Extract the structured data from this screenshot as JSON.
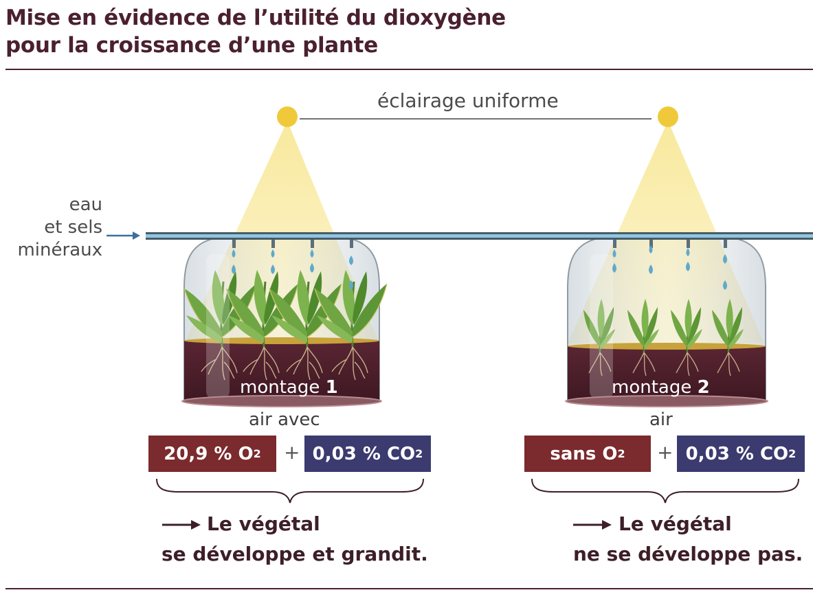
{
  "title": {
    "line1": "Mise en évidence de l’utilité du dioxygène",
    "line2": "pour la croissance d’une plante"
  },
  "lighting_label": "éclairage uniforme",
  "water_label": {
    "line1": "eau",
    "line2": "et sels",
    "line3": "minéraux"
  },
  "setups": [
    {
      "label": "montage",
      "number": "1",
      "air_label": "air avec",
      "o2_text": "20,9 % O",
      "o2_sub": "2",
      "plus": "+",
      "co2_text": "0,03 % CO",
      "co2_sub": "2",
      "result_line1": "Le végétal",
      "result_line2": "se développe et grandit."
    },
    {
      "label": "montage",
      "number": "2",
      "air_label": "air",
      "o2_text": "sans O",
      "o2_sub": "2",
      "plus": "+",
      "co2_text": "0,03 % CO",
      "co2_sub": "2",
      "result_line1": "Le végétal",
      "result_line2": "ne se développe pas."
    }
  ],
  "colors": {
    "title": "#4a2030",
    "o2_box": "#7b2a2d",
    "co2_box": "#3b3b70",
    "light": "#f2d24e",
    "soil": "#4a1f2a",
    "pipe": "#6aaed0",
    "drop": "#5fa9cc",
    "leaf": "#5e9a3a"
  }
}
